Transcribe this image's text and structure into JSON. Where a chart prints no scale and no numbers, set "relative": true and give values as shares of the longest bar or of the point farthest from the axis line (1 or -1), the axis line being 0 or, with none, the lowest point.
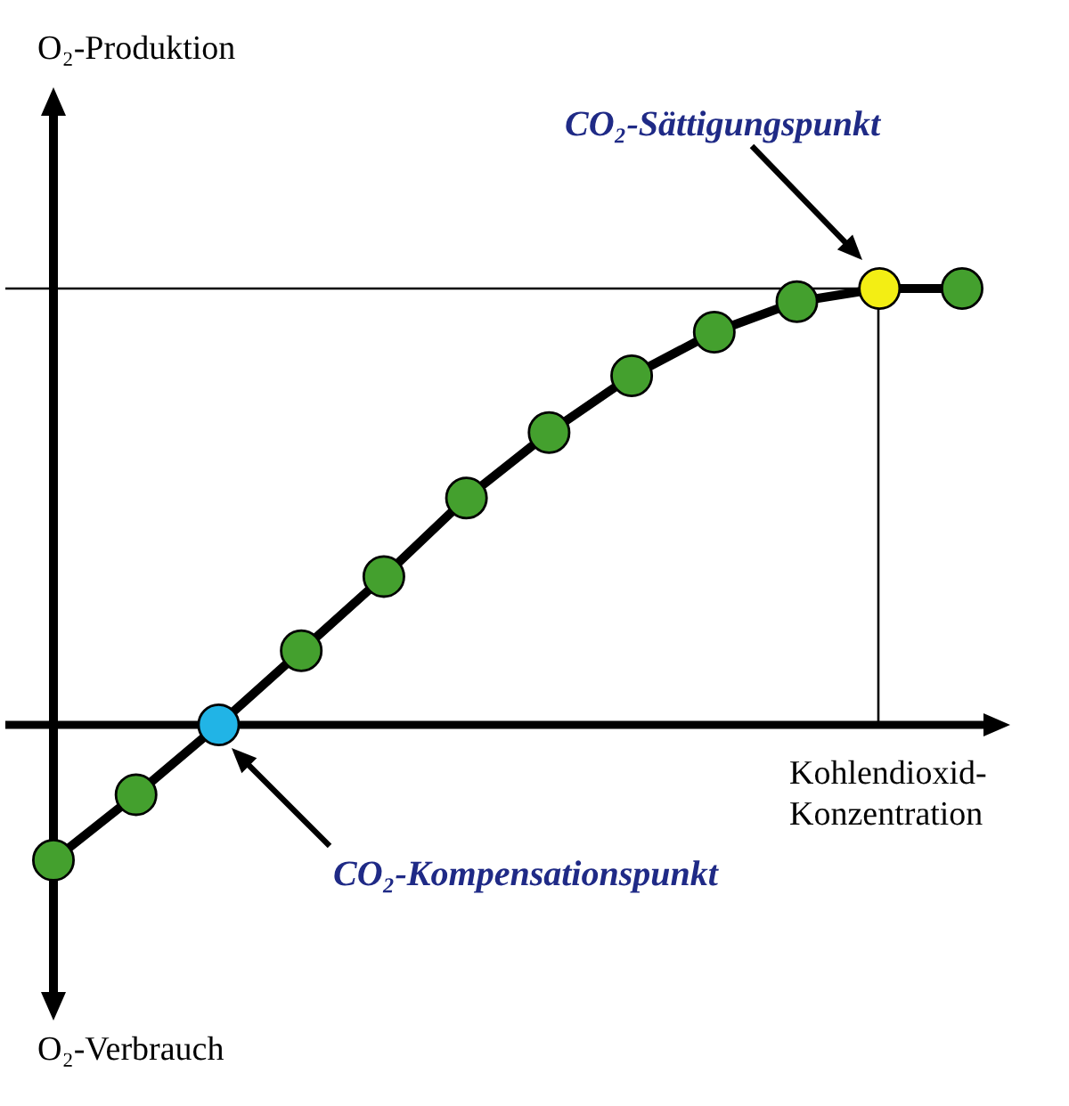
{
  "chart_data": {
    "type": "line",
    "xlabel": "Kohlendioxid-Konzentration",
    "categories": [
      null,
      null,
      null,
      null,
      null,
      null,
      null,
      null,
      null,
      null,
      null,
      null
    ],
    "values": [
      -0.31,
      -0.16,
      0,
      0.17,
      0.34,
      0.52,
      0.67,
      0.8,
      0.9,
      0.97,
      1,
      1
    ],
    "color": "#000000",
    "colors": [
      "#44a02e",
      "#44a02e",
      "#21b4e6",
      "#44a02e",
      "#44a02e",
      "#44a02e",
      "#44a02e",
      "#44a02e",
      "#44a02e",
      "#44a02e",
      "#f3ee14",
      "#44a02e"
    ],
    "relative": true,
    "marker": "circle",
    "line_style": "solid",
    "ref_lines": [
      {
        "axis": "y",
        "value": 1,
        "color": "#000000"
      }
    ],
    "annotations": [
      "CO₂-Sättigungspunkt",
      "CO₂-Kompensationspunkt",
      "O₂-Produktion",
      "O₂-Verbrauch"
    ]
  }
}
